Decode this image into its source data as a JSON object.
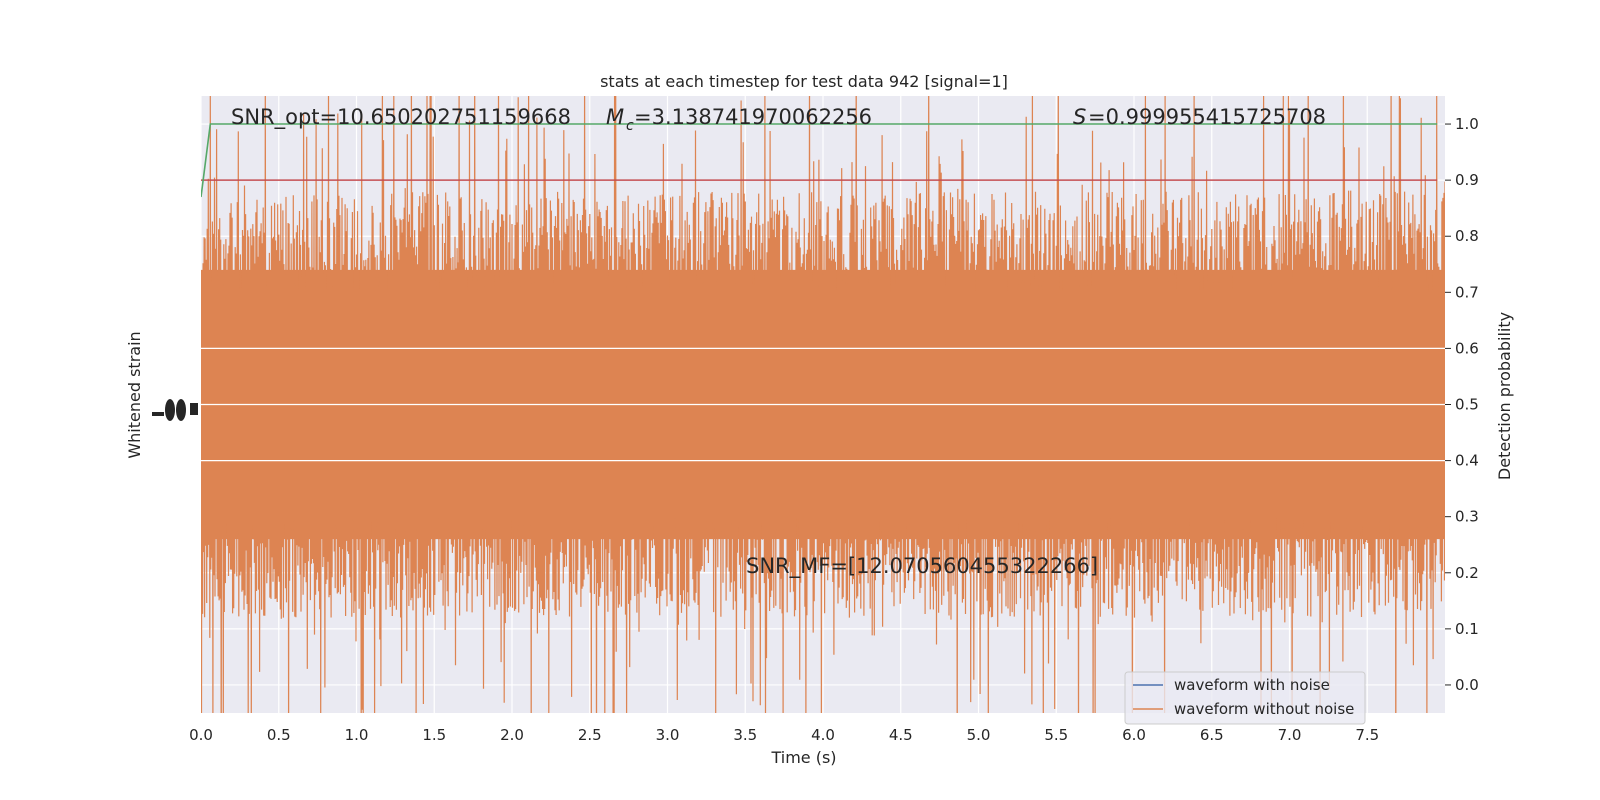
{
  "chart_data": {
    "type": "line",
    "title": "stats at each timestep for test data 942 [signal=1]",
    "xlabel": "Time (s)",
    "ylabel_left": "Whitened strain",
    "ylabel_right": "Detection probability",
    "xlim": [
      0.0,
      8.0
    ],
    "ylim_right": [
      -0.05,
      1.05
    ],
    "x_ticks": [
      "0.0",
      "0.5",
      "1.0",
      "1.5",
      "2.0",
      "2.5",
      "3.0",
      "3.5",
      "4.0",
      "4.5",
      "5.0",
      "5.5",
      "6.0",
      "6.5",
      "7.0",
      "7.5"
    ],
    "y_right_ticks": [
      "0.0",
      "0.1",
      "0.2",
      "0.3",
      "0.4",
      "0.5",
      "0.6",
      "0.7",
      "0.8",
      "0.9",
      "1.0"
    ],
    "grid": true,
    "legend_position": "lower-right",
    "threshold": 0.9,
    "detection_probability": {
      "x": [
        0.0,
        0.06,
        0.1,
        0.2,
        1.0,
        2.0,
        3.0,
        4.0,
        5.0,
        6.0,
        7.0,
        7.95
      ],
      "y": [
        0.87,
        1.0,
        1.0,
        1.0,
        1.0,
        1.0,
        1.0,
        1.0,
        1.0,
        1.0,
        1.0,
        1.0
      ]
    },
    "series": [
      {
        "name": "waveform with noise",
        "color": "#4c72b0"
      },
      {
        "name": "waveform without noise",
        "color": "#dd8452"
      }
    ],
    "annotations": {
      "snr_opt": "SNR_opt=10.650202751159668",
      "mc_value": "=3.138741970062256",
      "s_value": "=0.999955415725708",
      "snr_mf": "SNR_MF=[12.070560455322266]"
    },
    "colors": {
      "background": "#eaeaf2",
      "grid": "#ffffff",
      "noise_free": "#dd8452",
      "with_noise": "#4c72b0",
      "probability": "#55a868",
      "threshold": "#c44e52"
    }
  }
}
